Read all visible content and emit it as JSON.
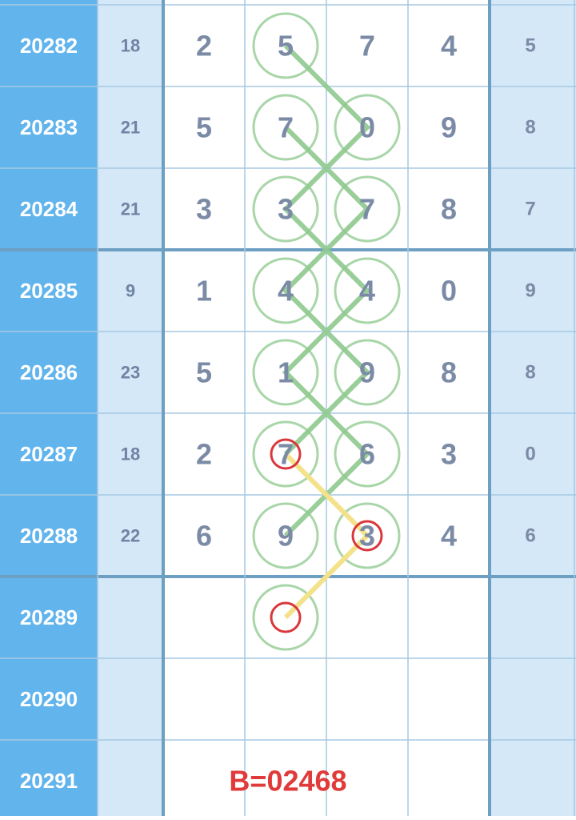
{
  "rows": [
    {
      "issue": "20282",
      "sum": "18",
      "digits": [
        "2",
        "5",
        "7",
        "4"
      ],
      "last": "5"
    },
    {
      "issue": "20283",
      "sum": "21",
      "digits": [
        "5",
        "7",
        "0",
        "9"
      ],
      "last": "8"
    },
    {
      "issue": "20284",
      "sum": "21",
      "digits": [
        "3",
        "3",
        "7",
        "8"
      ],
      "last": "7"
    },
    {
      "issue": "20285",
      "sum": "9",
      "digits": [
        "1",
        "4",
        "4",
        "0"
      ],
      "last": "9"
    },
    {
      "issue": "20286",
      "sum": "23",
      "digits": [
        "5",
        "1",
        "9",
        "8"
      ],
      "last": "8"
    },
    {
      "issue": "20287",
      "sum": "18",
      "digits": [
        "2",
        "7",
        "6",
        "3"
      ],
      "last": "0"
    },
    {
      "issue": "20288",
      "sum": "22",
      "digits": [
        "6",
        "9",
        "3",
        "4"
      ],
      "last": "6"
    },
    {
      "issue": "20289"
    },
    {
      "issue": "20290"
    },
    {
      "issue": "20291"
    }
  ],
  "footer": "B=02468"
}
